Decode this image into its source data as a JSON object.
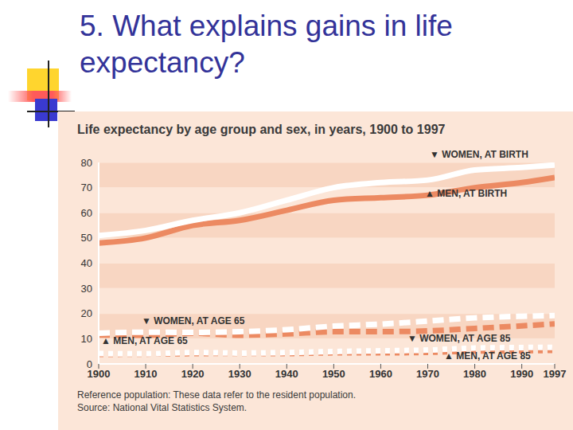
{
  "heading": "5. What explains gains in life expectancy?",
  "chart_data": {
    "type": "line",
    "title": "Life expectancy by age group and sex, in years, 1900 to 1997",
    "x": [
      1900,
      1910,
      1920,
      1930,
      1940,
      1950,
      1960,
      1970,
      1980,
      1990,
      1997
    ],
    "xlim": [
      1900,
      1997
    ],
    "xticks": [
      1900,
      1910,
      1920,
      1930,
      1940,
      1950,
      1960,
      1970,
      1980,
      1990,
      1997
    ],
    "ylim": [
      0,
      80
    ],
    "yticks": [
      0,
      10,
      20,
      30,
      40,
      50,
      60,
      70,
      80
    ],
    "grid": true,
    "series": [
      {
        "name": "▲ MEN, AT BIRTH",
        "color": "#ec8a62",
        "line_style": "solid",
        "marker": "none",
        "values": [
          48,
          50,
          55,
          57,
          61,
          65,
          66,
          67,
          70,
          72,
          74
        ]
      },
      {
        "name": "▼ WOMEN, AT BIRTH",
        "color": "#ffffff",
        "line_style": "solid",
        "marker": "none",
        "values": [
          51,
          53,
          57,
          60,
          65,
          70,
          72,
          73,
          77,
          78,
          79
        ]
      },
      {
        "name": "▲ MEN, AT AGE 65",
        "color": "#ec8a62",
        "line_style": "dashed",
        "marker": "none",
        "values": [
          11.5,
          11.4,
          12.2,
          11.4,
          11.9,
          12.8,
          12.8,
          13.1,
          14.1,
          15.1,
          15.9
        ]
      },
      {
        "name": "▼ WOMEN, AT AGE 65",
        "color": "#ffffff",
        "line_style": "dashed",
        "marker": "none",
        "values": [
          12.2,
          12.6,
          12.5,
          12.8,
          13.6,
          15.0,
          15.8,
          17.0,
          18.3,
          18.9,
          19.2
        ]
      },
      {
        "name": "▲ MEN, AT AGE 85",
        "color": "#ec8a62",
        "line_style": "dotted",
        "marker": "none",
        "values": [
          3.8,
          3.9,
          4.1,
          4.2,
          4.1,
          4.4,
          4.4,
          4.6,
          5.1,
          5.2,
          5.4
        ]
      },
      {
        "name": "▼ WOMEN, AT AGE 85",
        "color": "#ffffff",
        "line_style": "dotted",
        "marker": "none",
        "values": [
          4.1,
          4.0,
          4.5,
          4.3,
          4.5,
          4.9,
          5.2,
          5.5,
          6.3,
          6.5,
          6.6
        ]
      }
    ],
    "notes": [
      "Reference population: These data refer to the resident population.",
      "Source: National Vital Statistics System."
    ]
  }
}
